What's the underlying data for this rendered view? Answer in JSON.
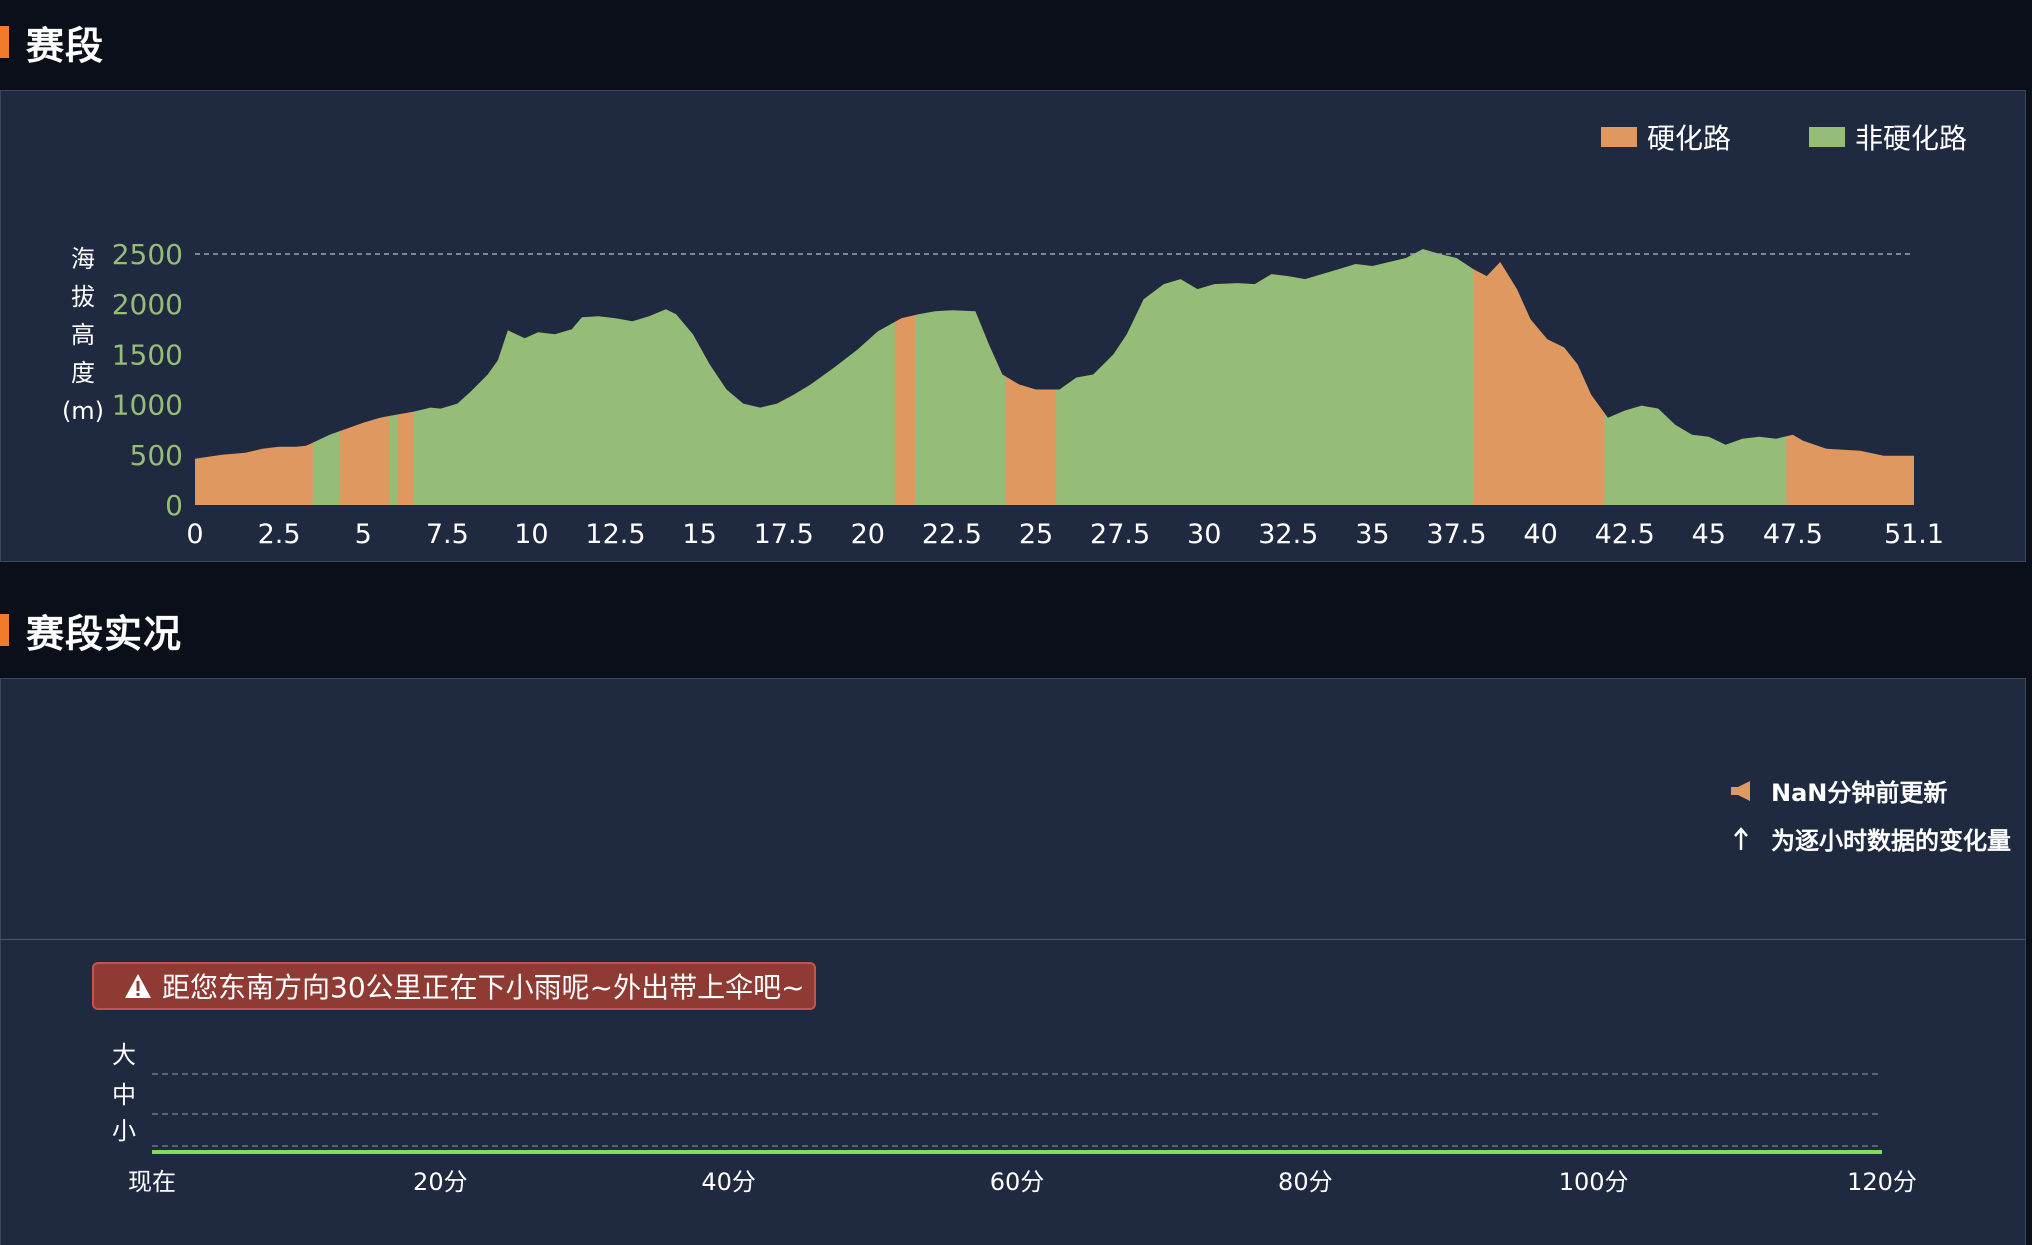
{
  "sections": {
    "segment_title": "赛段",
    "live_title": "赛段实况"
  },
  "colors": {
    "paved": "#df9960",
    "unpaved": "#95bd77",
    "accent": "#f07b2a",
    "alert_bg": "#8f3a33"
  },
  "chart_data": [
    {
      "type": "area",
      "title": "",
      "ylabel": "海拔高度(m)",
      "ylabel_chars": [
        "海",
        "拔",
        "高",
        "度",
        "(m)"
      ],
      "xlabel": "",
      "xlim": [
        0,
        51.1
      ],
      "ylim": [
        0,
        2500
      ],
      "x_ticks": [
        "0",
        "2.5",
        "5",
        "7.5",
        "10",
        "12.5",
        "15",
        "17.5",
        "20",
        "22.5",
        "25",
        "27.5",
        "30",
        "32.5",
        "35",
        "37.5",
        "40",
        "42.5",
        "45",
        "47.5",
        "51.1"
      ],
      "y_ticks": [
        "0",
        "500",
        "1000",
        "1500",
        "2000",
        "2500"
      ],
      "grid": "dashed line at 2500",
      "legend_position": "top-right",
      "legend": [
        {
          "name": "硬化路",
          "color": "#df9960"
        },
        {
          "name": "非硬化路",
          "color": "#95bd77"
        }
      ],
      "elevation_profile": [
        [
          0,
          460
        ],
        [
          0.8,
          500
        ],
        [
          1.5,
          520
        ],
        [
          2.0,
          560
        ],
        [
          2.5,
          580
        ],
        [
          3.0,
          580
        ],
        [
          3.3,
          590
        ],
        [
          3.5,
          620
        ],
        [
          4.0,
          700
        ],
        [
          4.5,
          760
        ],
        [
          5.0,
          820
        ],
        [
          5.5,
          870
        ],
        [
          6.0,
          900
        ],
        [
          6.5,
          930
        ],
        [
          7.0,
          970
        ],
        [
          7.3,
          960
        ],
        [
          7.8,
          1010
        ],
        [
          8.2,
          1130
        ],
        [
          8.7,
          1300
        ],
        [
          9.0,
          1440
        ],
        [
          9.3,
          1740
        ],
        [
          9.8,
          1660
        ],
        [
          10.2,
          1720
        ],
        [
          10.7,
          1700
        ],
        [
          11.2,
          1750
        ],
        [
          11.5,
          1870
        ],
        [
          12.0,
          1880
        ],
        [
          12.5,
          1860
        ],
        [
          13.0,
          1830
        ],
        [
          13.5,
          1880
        ],
        [
          14.0,
          1950
        ],
        [
          14.3,
          1900
        ],
        [
          14.8,
          1700
        ],
        [
          15.3,
          1400
        ],
        [
          15.8,
          1150
        ],
        [
          16.3,
          1010
        ],
        [
          16.8,
          970
        ],
        [
          17.3,
          1010
        ],
        [
          17.8,
          1100
        ],
        [
          18.3,
          1200
        ],
        [
          19.0,
          1370
        ],
        [
          19.7,
          1550
        ],
        [
          20.3,
          1730
        ],
        [
          21.0,
          1860
        ],
        [
          21.5,
          1900
        ],
        [
          22.0,
          1930
        ],
        [
          22.5,
          1940
        ],
        [
          23.2,
          1930
        ],
        [
          23.6,
          1600
        ],
        [
          24.0,
          1300
        ],
        [
          24.5,
          1200
        ],
        [
          25.0,
          1150
        ],
        [
          25.7,
          1150
        ],
        [
          26.2,
          1270
        ],
        [
          26.7,
          1300
        ],
        [
          27.3,
          1500
        ],
        [
          27.7,
          1700
        ],
        [
          28.2,
          2050
        ],
        [
          28.8,
          2200
        ],
        [
          29.3,
          2250
        ],
        [
          29.8,
          2150
        ],
        [
          30.3,
          2200
        ],
        [
          31.0,
          2210
        ],
        [
          31.5,
          2200
        ],
        [
          32.0,
          2300
        ],
        [
          32.5,
          2280
        ],
        [
          33.0,
          2250
        ],
        [
          33.5,
          2300
        ],
        [
          34.0,
          2350
        ],
        [
          34.5,
          2400
        ],
        [
          35.0,
          2380
        ],
        [
          35.5,
          2420
        ],
        [
          36.0,
          2460
        ],
        [
          36.5,
          2550
        ],
        [
          37.0,
          2500
        ],
        [
          37.5,
          2460
        ],
        [
          38.0,
          2350
        ],
        [
          38.4,
          2280
        ],
        [
          38.8,
          2420
        ],
        [
          39.3,
          2150
        ],
        [
          39.7,
          1850
        ],
        [
          40.2,
          1650
        ],
        [
          40.7,
          1570
        ],
        [
          41.1,
          1400
        ],
        [
          41.5,
          1100
        ],
        [
          42.0,
          870
        ],
        [
          42.5,
          940
        ],
        [
          43.0,
          990
        ],
        [
          43.5,
          960
        ],
        [
          44.0,
          800
        ],
        [
          44.5,
          700
        ],
        [
          45.0,
          680
        ],
        [
          45.5,
          600
        ],
        [
          46.0,
          660
        ],
        [
          46.5,
          680
        ],
        [
          47.0,
          660
        ],
        [
          47.5,
          700
        ],
        [
          47.8,
          640
        ],
        [
          48.5,
          560
        ],
        [
          49.5,
          540
        ],
        [
          50.2,
          490
        ],
        [
          51.1,
          490
        ]
      ],
      "surface_segments": [
        {
          "from": 0,
          "to": 3.5,
          "type": "paved"
        },
        {
          "from": 3.5,
          "to": 4.3,
          "type": "unpaved"
        },
        {
          "from": 4.3,
          "to": 5.8,
          "type": "paved"
        },
        {
          "from": 5.8,
          "to": 6.0,
          "type": "unpaved"
        },
        {
          "from": 6.0,
          "to": 6.5,
          "type": "paved"
        },
        {
          "from": 6.5,
          "to": 20.8,
          "type": "unpaved"
        },
        {
          "from": 20.8,
          "to": 21.4,
          "type": "paved"
        },
        {
          "from": 21.4,
          "to": 24.1,
          "type": "unpaved"
        },
        {
          "from": 24.1,
          "to": 25.6,
          "type": "paved"
        },
        {
          "from": 25.6,
          "to": 38.0,
          "type": "unpaved"
        },
        {
          "from": 38.0,
          "to": 41.9,
          "type": "paved"
        },
        {
          "from": 41.9,
          "to": 47.3,
          "type": "unpaved"
        },
        {
          "from": 47.3,
          "to": 51.1,
          "type": "paved"
        }
      ]
    },
    {
      "type": "line",
      "title": "",
      "ylabel": "",
      "xlabel": "",
      "x_ticks": [
        "现在",
        "20分",
        "40分",
        "60分",
        "80分",
        "100分",
        "120分"
      ],
      "y_levels": [
        "大",
        "中",
        "小"
      ],
      "x": [
        0,
        20,
        40,
        60,
        80,
        100,
        120
      ],
      "series": [
        {
          "values": [
            0,
            0,
            0,
            0,
            0,
            0,
            0
          ],
          "color": "#7fe060"
        }
      ]
    }
  ],
  "live": {
    "update_text": "NaN分钟前更新",
    "change_text": "为逐小时数据的变化量",
    "alert_text": "距您东南方向30公里正在下小雨呢~外出带上伞吧~"
  }
}
